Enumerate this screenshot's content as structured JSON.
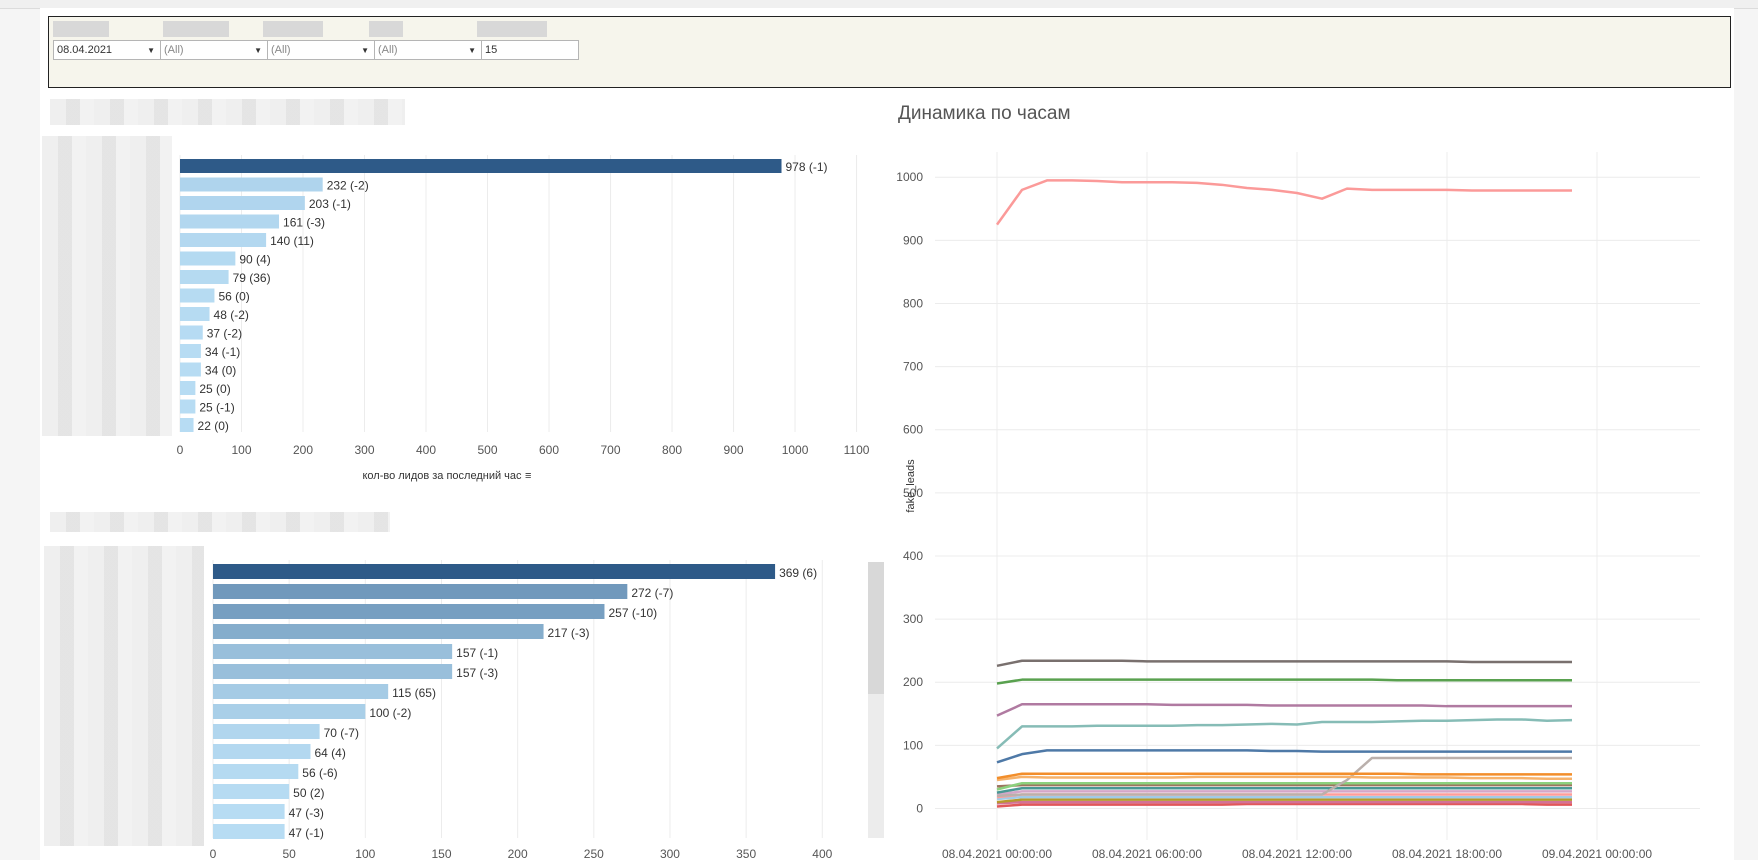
{
  "filters": {
    "date": "08.04.2021",
    "filter2": "(All)",
    "filter3": "(All)",
    "filter4": "(All)",
    "top_n": "15"
  },
  "colors": {
    "bar_dark": "#2e5a88",
    "bar_light": "#b7dcf3",
    "line_red": "#fb9a99",
    "grid": "#ececec"
  },
  "chart_data": [
    {
      "type": "bar",
      "orientation": "horizontal",
      "categories": [
        "",
        "",
        "",
        "",
        "",
        "",
        "",
        "",
        "",
        "",
        "",
        "",
        "",
        "",
        ""
      ],
      "values": [
        978,
        232,
        203,
        161,
        140,
        90,
        79,
        56,
        48,
        37,
        34,
        34,
        25,
        25,
        22
      ],
      "labels": [
        "978 (-1)",
        "232 (-2)",
        "203 (-1)",
        "161 (-3)",
        "140 (11)",
        "90 (4)",
        "79 (36)",
        "56 (0)",
        "48 (-2)",
        "37 (-2)",
        "34 (-1)",
        "34 (0)",
        "25 (0)",
        "25 (-1)",
        "22 (0)"
      ],
      "xlabel": "кол-во лидов за последний час",
      "xlim": [
        0,
        1130
      ],
      "xticks": [
        0,
        100,
        200,
        300,
        400,
        500,
        600,
        700,
        800,
        900,
        1000,
        1100
      ],
      "grid": true
    },
    {
      "type": "bar",
      "orientation": "horizontal",
      "categories": [
        "",
        "",
        "",
        "",
        "",
        "",
        "",
        "",
        "",
        "",
        "",
        "",
        "",
        ""
      ],
      "values": [
        369,
        272,
        257,
        217,
        157,
        157,
        115,
        100,
        70,
        64,
        56,
        50,
        47,
        47
      ],
      "labels": [
        "369 (6)",
        "272 (-7)",
        "257 (-10)",
        "217 (-3)",
        "157 (-1)",
        "157 (-3)",
        "115 (65)",
        "100 (-2)",
        "70 (-7)",
        "64 (4)",
        "56 (-6)",
        "50 (2)",
        "47 (-3)",
        "47 (-1)"
      ],
      "xlim": [
        0,
        430
      ],
      "xticks": [
        0,
        50,
        100,
        150,
        200,
        250,
        300,
        350,
        400
      ],
      "grid": true
    },
    {
      "type": "line",
      "title": "Динамика по часам",
      "ylabel": "fake_leads",
      "ylim": [
        -50,
        1040
      ],
      "yticks": [
        0,
        100,
        200,
        300,
        400,
        500,
        600,
        700,
        800,
        900,
        1000
      ],
      "x_hours": [
        0,
        1,
        2,
        3,
        4,
        5,
        6,
        7,
        8,
        9,
        10,
        11,
        12,
        13,
        14,
        15,
        16,
        17,
        18,
        19,
        20,
        21,
        22,
        23
      ],
      "xtick_labels": [
        "08.04.2021 00:00:00",
        "08.04.2021 06:00:00",
        "08.04.2021 12:00:00",
        "08.04.2021 18:00:00",
        "09.04.2021 00:00:00"
      ],
      "xtick_hours": [
        0,
        6,
        12,
        18,
        24
      ],
      "grid": true,
      "series": [
        {
          "color": "#fb9a99",
          "values": [
            925,
            980,
            995,
            995,
            994,
            992,
            992,
            992,
            991,
            988,
            983,
            980,
            975,
            966,
            982,
            980,
            980,
            980,
            980,
            979,
            979,
            979,
            979,
            979
          ]
        },
        {
          "color": "#79706e",
          "values": [
            226,
            234,
            234,
            234,
            234,
            234,
            233,
            233,
            233,
            233,
            233,
            233,
            233,
            233,
            233,
            233,
            233,
            233,
            233,
            232,
            232,
            232,
            232,
            232
          ]
        },
        {
          "color": "#59a14f",
          "values": [
            198,
            204,
            204,
            204,
            204,
            204,
            204,
            204,
            204,
            204,
            204,
            204,
            204,
            204,
            204,
            204,
            203,
            203,
            203,
            203,
            203,
            203,
            203,
            203
          ]
        },
        {
          "color": "#b07aa1",
          "values": [
            147,
            165,
            165,
            165,
            165,
            165,
            165,
            164,
            164,
            164,
            164,
            163,
            163,
            163,
            163,
            163,
            163,
            163,
            162,
            162,
            162,
            162,
            162,
            162
          ]
        },
        {
          "color": "#86bcb6",
          "values": [
            95,
            130,
            130,
            130,
            131,
            131,
            131,
            131,
            132,
            132,
            133,
            134,
            133,
            137,
            137,
            137,
            138,
            139,
            139,
            140,
            141,
            141,
            139,
            140
          ]
        },
        {
          "color": "#4e79a7",
          "values": [
            73,
            86,
            92,
            92,
            92,
            92,
            92,
            92,
            92,
            92,
            92,
            91,
            91,
            90,
            90,
            90,
            90,
            90,
            90,
            90,
            90,
            90,
            90,
            90
          ]
        },
        {
          "color": "#f28e2b",
          "values": [
            48,
            55,
            55,
            55,
            55,
            55,
            55,
            55,
            55,
            55,
            55,
            55,
            55,
            55,
            55,
            55,
            55,
            54,
            54,
            54,
            54,
            54,
            54,
            54
          ]
        },
        {
          "color": "#f6b26b",
          "values": [
            45,
            50,
            49,
            49,
            49,
            49,
            49,
            49,
            50,
            50,
            50,
            50,
            50,
            50,
            50,
            49,
            49,
            49,
            49,
            48,
            48,
            48,
            47,
            47
          ]
        },
        {
          "color": "#bab0ac",
          "values": [
            20,
            22,
            22,
            22,
            22,
            22,
            22,
            22,
            22,
            22,
            22,
            22,
            22,
            22,
            45,
            80,
            80,
            80,
            80,
            80,
            80,
            80,
            80,
            80
          ]
        },
        {
          "color": "#8cd17d",
          "values": [
            30,
            40,
            40,
            40,
            40,
            40,
            40,
            40,
            40,
            40,
            40,
            40,
            40,
            40,
            40,
            40,
            40,
            40,
            40,
            40,
            40,
            40,
            40,
            40
          ]
        },
        {
          "color": "#9c755f",
          "values": [
            35,
            37,
            37,
            37,
            37,
            37,
            37,
            37,
            37,
            37,
            37,
            37,
            37,
            37,
            37,
            37,
            37,
            37,
            37,
            37,
            37,
            37,
            37,
            37
          ]
        },
        {
          "color": "#499894",
          "values": [
            25,
            32,
            32,
            32,
            32,
            32,
            32,
            32,
            32,
            32,
            32,
            32,
            32,
            32,
            32,
            32,
            32,
            32,
            32,
            32,
            32,
            32,
            32,
            32
          ]
        },
        {
          "color": "#d4a6c8",
          "values": [
            22,
            27,
            27,
            27,
            27,
            27,
            27,
            27,
            27,
            27,
            27,
            27,
            27,
            27,
            27,
            27,
            27,
            27,
            27,
            27,
            27,
            27,
            27,
            27
          ]
        },
        {
          "color": "#ff9d9a",
          "values": [
            18,
            22,
            22,
            22,
            22,
            22,
            22,
            22,
            22,
            22,
            22,
            22,
            22,
            22,
            22,
            22,
            22,
            22,
            22,
            22,
            22,
            22,
            22,
            22
          ]
        },
        {
          "color": "#a0cbe8",
          "values": [
            15,
            18,
            18,
            18,
            18,
            18,
            18,
            18,
            18,
            18,
            18,
            18,
            18,
            18,
            18,
            18,
            18,
            18,
            18,
            18,
            18,
            18,
            18,
            18
          ]
        },
        {
          "color": "#b6992d",
          "values": [
            10,
            14,
            14,
            14,
            14,
            14,
            14,
            14,
            14,
            14,
            14,
            14,
            14,
            14,
            14,
            14,
            14,
            14,
            14,
            14,
            14,
            14,
            14,
            14
          ]
        },
        {
          "color": "#d37295",
          "values": [
            8,
            10,
            10,
            10,
            10,
            10,
            10,
            10,
            10,
            10,
            10,
            10,
            10,
            10,
            10,
            10,
            10,
            10,
            10,
            10,
            10,
            10,
            10,
            10
          ]
        },
        {
          "color": "#e15759",
          "values": [
            3,
            6,
            6,
            6,
            6,
            6,
            6,
            6,
            6,
            6,
            7,
            7,
            7,
            7,
            7,
            7,
            7,
            7,
            7,
            7,
            7,
            7,
            6,
            6
          ]
        }
      ]
    }
  ]
}
